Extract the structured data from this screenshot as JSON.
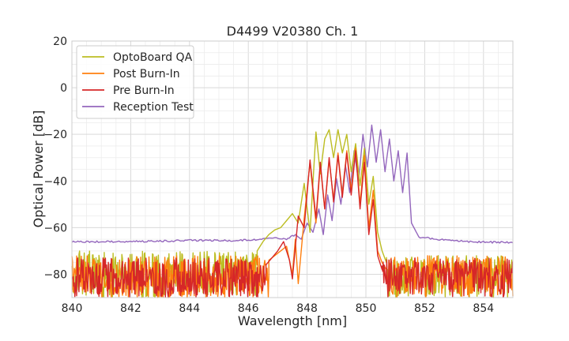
{
  "chart_data": {
    "type": "line",
    "title": "D4499 V20380 Ch. 1",
    "xlabel": "Wavelength [nm]",
    "ylabel": "Optical Power [dB]",
    "xlim": [
      840,
      855
    ],
    "ylim": [
      -90,
      20
    ],
    "x_ticks": [
      840,
      842,
      844,
      846,
      848,
      850,
      852,
      854
    ],
    "x_tick_labels": [
      "840",
      "842",
      "844",
      "846",
      "848",
      "850",
      "852",
      "854"
    ],
    "y_ticks": [
      -80,
      -60,
      -40,
      -20,
      0,
      20
    ],
    "y_tick_labels": [
      "−80",
      "−60",
      "−40",
      "−20",
      "0",
      "20"
    ],
    "grid": true,
    "legend_position": "top-left",
    "series": [
      {
        "name": "OptoBoard QA",
        "color": "#bcbd22",
        "noise_region": {
          "x_start": 840.0,
          "x_end": 846.3,
          "y_min": -90,
          "y_max": -70
        },
        "x": [
          846.3,
          846.5,
          846.7,
          846.9,
          847.1,
          847.3,
          847.5,
          847.7,
          847.9,
          848.1,
          848.3,
          848.45,
          848.6,
          848.75,
          848.9,
          849.05,
          849.2,
          849.35,
          849.5,
          849.65,
          849.8,
          849.95,
          850.1,
          850.25,
          850.4,
          850.55,
          850.7
        ],
        "y": [
          -70,
          -66,
          -63,
          -61,
          -60,
          -57,
          -54,
          -58,
          -41,
          -62,
          -19,
          -37,
          -22,
          -18,
          -30,
          -18,
          -28,
          -20,
          -36,
          -24,
          -42,
          -26,
          -50,
          -38,
          -62,
          -70,
          -75
        ],
        "noise_region_after": {
          "x_start": 850.7,
          "x_end": 855.0,
          "y_min": -90,
          "y_max": -72
        }
      },
      {
        "name": "Post Burn-In",
        "color": "#ff7f0e",
        "noise_region": {
          "x_start": 840.0,
          "x_end": 846.7,
          "y_min": -90,
          "y_max": -72
        },
        "x": [
          846.7,
          846.9,
          847.1,
          847.3,
          847.5,
          847.6,
          847.7,
          847.9,
          848.1,
          848.3,
          848.45,
          848.6,
          848.75,
          848.9,
          849.05,
          849.2,
          849.35,
          849.5,
          849.65,
          849.8,
          849.95,
          850.1,
          850.25,
          850.4,
          850.55,
          850.7
        ],
        "y": [
          -74,
          -72,
          -70,
          -68,
          -80,
          -65,
          -84,
          -56,
          -32,
          -58,
          -33,
          -52,
          -31,
          -48,
          -28,
          -46,
          -27,
          -44,
          -26,
          -50,
          -29,
          -60,
          -44,
          -70,
          -75,
          -78
        ],
        "noise_region_after": {
          "x_start": 850.7,
          "x_end": 855.0,
          "y_min": -90,
          "y_max": -72
        }
      },
      {
        "name": "Pre Burn-In",
        "color": "#d62728",
        "noise_region": {
          "x_start": 840.0,
          "x_end": 846.6,
          "y_min": -90,
          "y_max": -73
        },
        "x": [
          846.6,
          846.8,
          847.0,
          847.2,
          847.4,
          847.5,
          847.7,
          847.9,
          848.1,
          848.3,
          848.45,
          848.6,
          848.75,
          848.9,
          849.05,
          849.2,
          849.35,
          849.5,
          849.65,
          849.8,
          849.95,
          850.1,
          850.25,
          850.4,
          850.55
        ],
        "y": [
          -76,
          -73,
          -70,
          -66,
          -74,
          -82,
          -55,
          -60,
          -31,
          -56,
          -32,
          -52,
          -30,
          -49,
          -29,
          -47,
          -28,
          -46,
          -27,
          -52,
          -32,
          -63,
          -48,
          -72,
          -78
        ],
        "noise_region_after": {
          "x_start": 850.55,
          "x_end": 855.0,
          "y_min": -90,
          "y_max": -73
        }
      },
      {
        "name": "Reception Test",
        "color": "#9467bd",
        "x": [
          840.0,
          842.0,
          844.0,
          845.5,
          846.5,
          847.0,
          847.3,
          847.6,
          847.8,
          848.0,
          848.2,
          848.4,
          848.55,
          848.7,
          848.85,
          849.0,
          849.15,
          849.3,
          849.45,
          849.6,
          849.75,
          849.9,
          850.05,
          850.2,
          850.35,
          850.5,
          850.65,
          850.8,
          850.95,
          851.1,
          851.25,
          851.4,
          851.55,
          851.8,
          852.5,
          853.5,
          855.0
        ],
        "y": [
          -66,
          -66,
          -65.5,
          -65.5,
          -65,
          -64.5,
          -65,
          -63,
          -65,
          -58,
          -62,
          -52,
          -63,
          -46,
          -57,
          -39,
          -50,
          -33,
          -45,
          -27,
          -40,
          -20,
          -34,
          -16,
          -32,
          -18,
          -36,
          -22,
          -40,
          -27,
          -45,
          -28,
          -58,
          -64,
          -65,
          -66,
          -66.5
        ]
      }
    ]
  }
}
